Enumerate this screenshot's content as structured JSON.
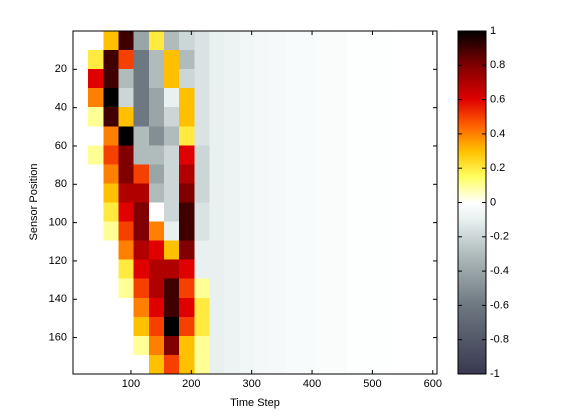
{
  "chart_data": {
    "type": "heatmap",
    "xlabel": "Time Step",
    "ylabel": "Sensor Position",
    "xlim": [
      4,
      607
    ],
    "ylim": [
      0,
      179
    ],
    "xticks": [
      100,
      200,
      300,
      400,
      500,
      600
    ],
    "yticks": [
      20,
      40,
      60,
      80,
      100,
      120,
      140,
      160
    ],
    "y_reversed": true,
    "z": [
      [
        0,
        0,
        0.3,
        0.9,
        -0.4,
        0.2,
        -0.3,
        -0.2,
        -0.15,
        -0.1,
        -0.08,
        -0.06,
        -0.05,
        -0.04,
        -0.03,
        -0.03,
        -0.02,
        -0.02,
        -0.01,
        -0.01,
        -0.01,
        0,
        0,
        0
      ],
      [
        0,
        0.2,
        0.9,
        0.5,
        -0.6,
        -0.3,
        0.3,
        -0.3,
        -0.15,
        -0.1,
        -0.08,
        -0.06,
        -0.05,
        -0.04,
        -0.03,
        -0.03,
        -0.02,
        -0.02,
        -0.01,
        -0.01,
        -0.01,
        0,
        0,
        0
      ],
      [
        0,
        0.6,
        0.9,
        -0.3,
        -0.6,
        -0.3,
        0.3,
        -0.2,
        -0.15,
        -0.1,
        -0.08,
        -0.06,
        -0.05,
        -0.04,
        -0.03,
        -0.03,
        -0.02,
        -0.02,
        -0.01,
        -0.01,
        -0.01,
        0,
        0,
        0
      ],
      [
        0,
        0.4,
        1,
        -0.2,
        -0.6,
        -0.4,
        -0.1,
        0.3,
        -0.15,
        -0.1,
        -0.08,
        -0.06,
        -0.05,
        -0.04,
        -0.03,
        -0.03,
        -0.02,
        -0.02,
        -0.01,
        -0.01,
        -0.01,
        0,
        0,
        0
      ],
      [
        0,
        0.1,
        0.9,
        0.3,
        -0.6,
        -0.4,
        -0.2,
        0.3,
        -0.15,
        -0.1,
        -0.08,
        -0.06,
        -0.05,
        -0.04,
        -0.03,
        -0.03,
        -0.02,
        -0.02,
        -0.01,
        -0.01,
        -0.01,
        0,
        0,
        0
      ],
      [
        0,
        0,
        0.4,
        1,
        -0.3,
        -0.5,
        -0.3,
        0.2,
        -0.15,
        -0.1,
        -0.08,
        -0.06,
        -0.05,
        -0.04,
        -0.03,
        -0.03,
        -0.02,
        -0.02,
        -0.01,
        -0.01,
        -0.01,
        0,
        0,
        0
      ],
      [
        0,
        0.1,
        0.5,
        0.8,
        -0.3,
        -0.3,
        -0.2,
        0.6,
        -0.2,
        -0.1,
        -0.08,
        -0.06,
        -0.05,
        -0.04,
        -0.03,
        -0.03,
        -0.02,
        -0.02,
        -0.01,
        -0.01,
        -0.01,
        0,
        0,
        0
      ],
      [
        0,
        0,
        0.4,
        0.8,
        0.5,
        -0.4,
        -0.2,
        0.7,
        -0.2,
        -0.1,
        -0.08,
        -0.06,
        -0.05,
        -0.04,
        -0.03,
        -0.03,
        -0.02,
        -0.02,
        -0.01,
        -0.01,
        -0.01,
        0,
        0,
        0
      ],
      [
        0,
        0,
        0.3,
        0.7,
        0.7,
        -0.3,
        -0.2,
        0.8,
        -0.2,
        -0.1,
        -0.08,
        -0.06,
        -0.05,
        -0.04,
        -0.03,
        -0.03,
        -0.02,
        -0.02,
        -0.01,
        -0.01,
        -0.01,
        0,
        0,
        0
      ],
      [
        0,
        0,
        0.2,
        0.6,
        0.8,
        0,
        -0.2,
        0.9,
        -0.15,
        -0.1,
        -0.08,
        -0.06,
        -0.05,
        -0.04,
        -0.03,
        -0.03,
        -0.02,
        -0.02,
        -0.01,
        -0.01,
        -0.01,
        0,
        0,
        0
      ],
      [
        0,
        0,
        0.1,
        0.5,
        0.8,
        0.4,
        -0.1,
        0.9,
        -0.15,
        -0.1,
        -0.08,
        -0.06,
        -0.05,
        -0.04,
        -0.03,
        -0.03,
        -0.02,
        -0.02,
        -0.01,
        -0.01,
        -0.01,
        0,
        0,
        0
      ],
      [
        0,
        0,
        0,
        0.4,
        0.7,
        0.6,
        0.3,
        0.8,
        -0.1,
        -0.1,
        -0.08,
        -0.06,
        -0.05,
        -0.04,
        -0.03,
        -0.03,
        -0.02,
        -0.02,
        -0.01,
        -0.01,
        -0.01,
        0,
        0,
        0
      ],
      [
        0,
        0,
        0,
        0.2,
        0.6,
        0.7,
        0.7,
        0.6,
        -0.1,
        -0.1,
        -0.08,
        -0.06,
        -0.05,
        -0.04,
        -0.03,
        -0.03,
        -0.02,
        -0.02,
        -0.01,
        -0.01,
        -0.01,
        0,
        0,
        0
      ],
      [
        0,
        0,
        0,
        0.1,
        0.5,
        0.7,
        0.9,
        0.5,
        0.1,
        -0.1,
        -0.08,
        -0.06,
        -0.05,
        -0.04,
        -0.03,
        -0.03,
        -0.02,
        -0.02,
        -0.01,
        -0.01,
        -0.01,
        0,
        0,
        0
      ],
      [
        0,
        0,
        0,
        0,
        0.4,
        0.6,
        0.9,
        0.6,
        0.2,
        -0.1,
        -0.08,
        -0.06,
        -0.05,
        -0.04,
        -0.03,
        -0.03,
        -0.02,
        -0.02,
        -0.01,
        -0.01,
        -0.01,
        0,
        0,
        0
      ],
      [
        0,
        0,
        0,
        0,
        0.3,
        0.5,
        1,
        0.5,
        0.2,
        -0.1,
        -0.08,
        -0.06,
        -0.05,
        -0.04,
        -0.03,
        -0.03,
        -0.02,
        -0.02,
        -0.01,
        -0.01,
        -0.01,
        0,
        0,
        0
      ],
      [
        0,
        0,
        0,
        0,
        0.1,
        0.4,
        0.8,
        0.3,
        0.1,
        -0.1,
        -0.08,
        -0.06,
        -0.05,
        -0.04,
        -0.03,
        -0.03,
        -0.02,
        -0.02,
        -0.01,
        -0.01,
        -0.01,
        0,
        0,
        0
      ],
      [
        0,
        0,
        0,
        0,
        0,
        0.3,
        0.5,
        0.3,
        0.1,
        -0.1,
        -0.08,
        -0.06,
        -0.05,
        -0.04,
        -0.03,
        -0.03,
        -0.02,
        -0.02,
        -0.01,
        -0.01,
        -0.01,
        0,
        0,
        0
      ]
    ],
    "colorbar": {
      "lim": [
        -1,
        1
      ],
      "ticks": [
        -1,
        -0.8,
        -0.6,
        -0.4,
        -0.2,
        0,
        0.2,
        0.4,
        0.6,
        0.8,
        1
      ],
      "colormap": [
        {
          "value": -1,
          "color": "#383850"
        },
        {
          "value": -0.6,
          "color": "#6e7880"
        },
        {
          "value": -0.3,
          "color": "#b0bcbc"
        },
        {
          "value": -0.1,
          "color": "#e8f0f0"
        },
        {
          "value": 0,
          "color": "#ffffff"
        },
        {
          "value": 0.15,
          "color": "#ffff60"
        },
        {
          "value": 0.3,
          "color": "#ffc000"
        },
        {
          "value": 0.45,
          "color": "#ff6000"
        },
        {
          "value": 0.6,
          "color": "#e00000"
        },
        {
          "value": 0.8,
          "color": "#800000"
        },
        {
          "value": 1,
          "color": "#000000"
        }
      ]
    }
  }
}
